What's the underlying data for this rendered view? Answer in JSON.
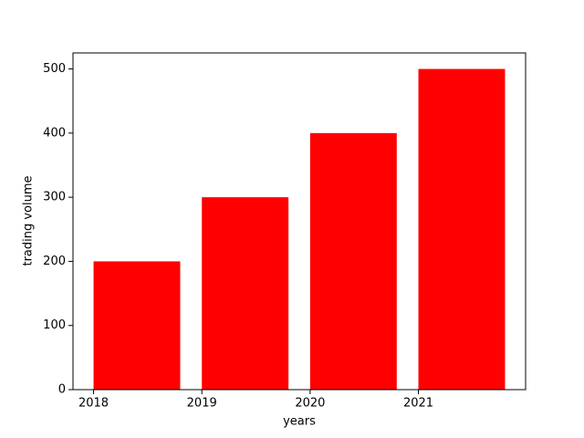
{
  "chart_data": {
    "type": "bar",
    "x": [
      2018,
      2019,
      2020,
      2021
    ],
    "values": [
      200,
      300,
      400,
      500
    ],
    "color": "#ff0000",
    "xlabel": "years",
    "ylabel": "trading volume",
    "xlim": [
      2017.81,
      2021.99
    ],
    "xticks": [
      2018,
      2019,
      2020,
      2021
    ],
    "ylim": [
      0,
      525
    ],
    "yticks": [
      0,
      100,
      200,
      300,
      400,
      500
    ],
    "grid": false
  }
}
